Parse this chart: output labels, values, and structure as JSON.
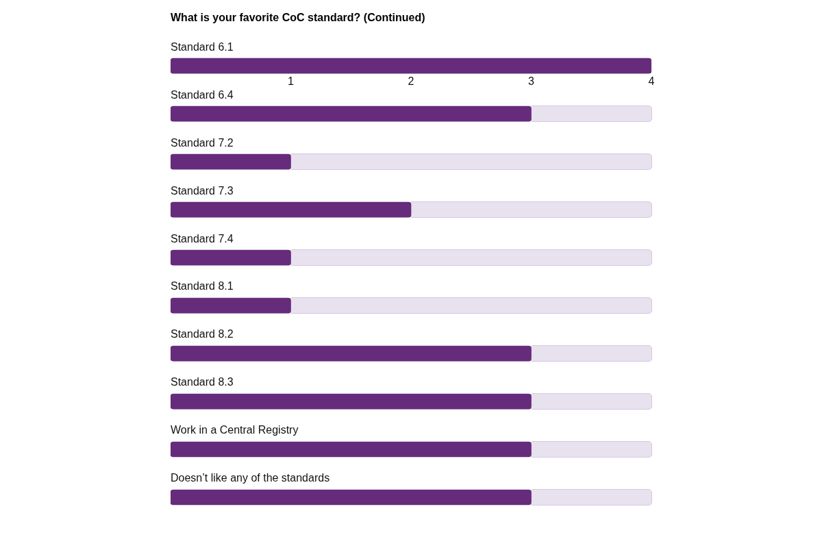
{
  "chart_data": {
    "type": "bar",
    "orientation": "horizontal",
    "title": "What is your favorite CoC standard? (Continued)",
    "categories": [
      "Standard 6.1",
      "Standard 6.4",
      "Standard 7.2",
      "Standard 7.3",
      "Standard 7.4",
      "Standard 8.1",
      "Standard 8.2",
      "Standard 8.3",
      "Work in a Central Registry",
      "Doesn’t like any of the standards"
    ],
    "values": [
      4,
      3,
      1,
      2,
      1,
      1,
      3,
      3,
      3,
      3
    ],
    "color": "#662c7b",
    "xlim": [
      0,
      4
    ],
    "xticks": [
      1,
      2,
      3,
      4
    ]
  }
}
